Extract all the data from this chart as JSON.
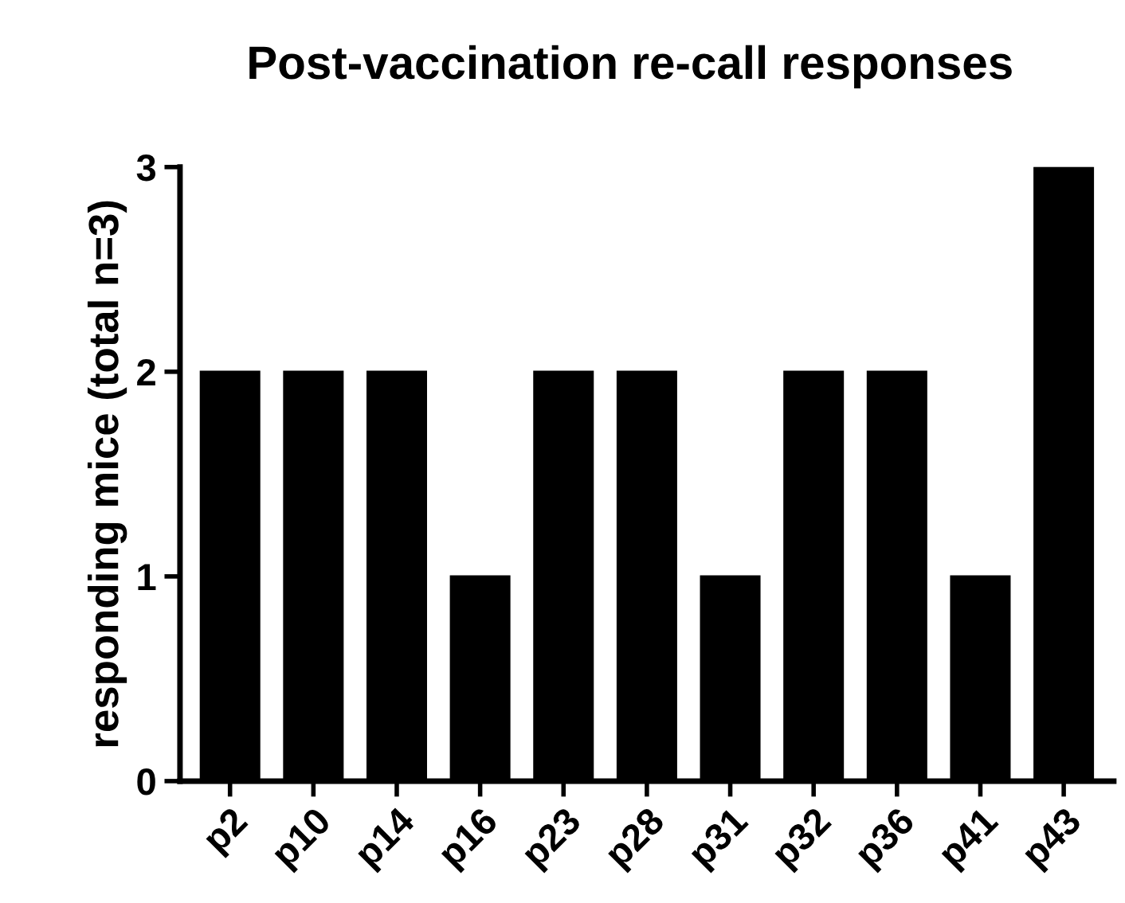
{
  "chart_data": {
    "type": "bar",
    "title": "Post-vaccination re-call responses",
    "ylabel": "responding mice (total n=3)",
    "categories": [
      "p2",
      "p10",
      "p14",
      "p16",
      "p23",
      "p28",
      "p31",
      "p32",
      "p36",
      "p41",
      "p43"
    ],
    "values": [
      2,
      2,
      2,
      1,
      2,
      2,
      1,
      2,
      2,
      1,
      3
    ],
    "color": "#000000",
    "ylim": [
      0,
      3
    ],
    "yticks": [
      0,
      1,
      2,
      3
    ],
    "grid": false,
    "legend": false
  }
}
